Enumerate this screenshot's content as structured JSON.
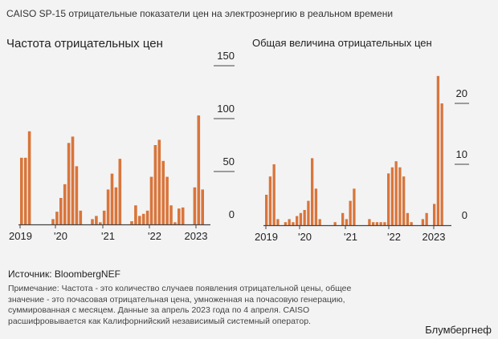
{
  "title": "CAISO SP-15 отрицательные показатели цен на электроэнергию в реальном времени",
  "source": "Источник: BloombergNEF",
  "note": "Примечание: Частота - это количество случаев появления отрицательной цены, общее значение - это почасовая отрицательная цена, умноженная на почасовую генерацию, суммированная с месяцем. Данные за апрель 2023 года по 4 апреля. CAISO расшифровывается как Калифорнийский независимый системный оператор.",
  "brand": "Блумбергнеф",
  "colors": {
    "bar": "#d9753b",
    "axis": "#444444",
    "background": "#f3f3f3"
  },
  "chart_data": [
    {
      "type": "bar",
      "title": "Частота отрицательных цен",
      "x_tick_labels": [
        "2019",
        "'20",
        "'21",
        "'22",
        "2023"
      ],
      "ylim": [
        0,
        150
      ],
      "yticks": [
        0,
        50,
        100,
        150
      ],
      "y_axis_position": "right",
      "grid": false,
      "values": [
        63,
        63,
        88,
        0,
        0,
        0,
        0,
        0,
        5,
        12,
        25,
        38,
        77,
        83,
        55,
        13,
        0,
        0,
        5,
        8,
        2,
        13,
        33,
        48,
        35,
        62,
        0,
        0,
        3,
        18,
        8,
        10,
        13,
        45,
        75,
        80,
        60,
        45,
        18,
        2,
        15,
        16,
        0,
        0,
        35,
        103,
        33
      ]
    },
    {
      "type": "bar",
      "title": "Общая величина отрицательных цен",
      "x_tick_labels": [
        "2019",
        "'20",
        "'21",
        "'22",
        "2023"
      ],
      "ylim": [
        0,
        25
      ],
      "yticks": [
        0,
        10,
        20
      ],
      "y_axis_position": "right",
      "grid": false,
      "values": [
        5,
        8,
        10,
        1,
        0,
        0.5,
        1,
        0.5,
        1.5,
        2,
        2.5,
        4,
        11,
        6,
        1,
        0,
        0,
        0,
        0.5,
        0,
        2,
        1,
        4,
        6,
        0,
        0,
        0,
        1,
        0.5,
        0.5,
        0.5,
        0.5,
        8.5,
        9.5,
        10.5,
        9.5,
        8,
        2,
        0.5,
        0,
        0,
        1,
        2,
        0,
        3.5,
        24.5,
        20
      ]
    }
  ]
}
